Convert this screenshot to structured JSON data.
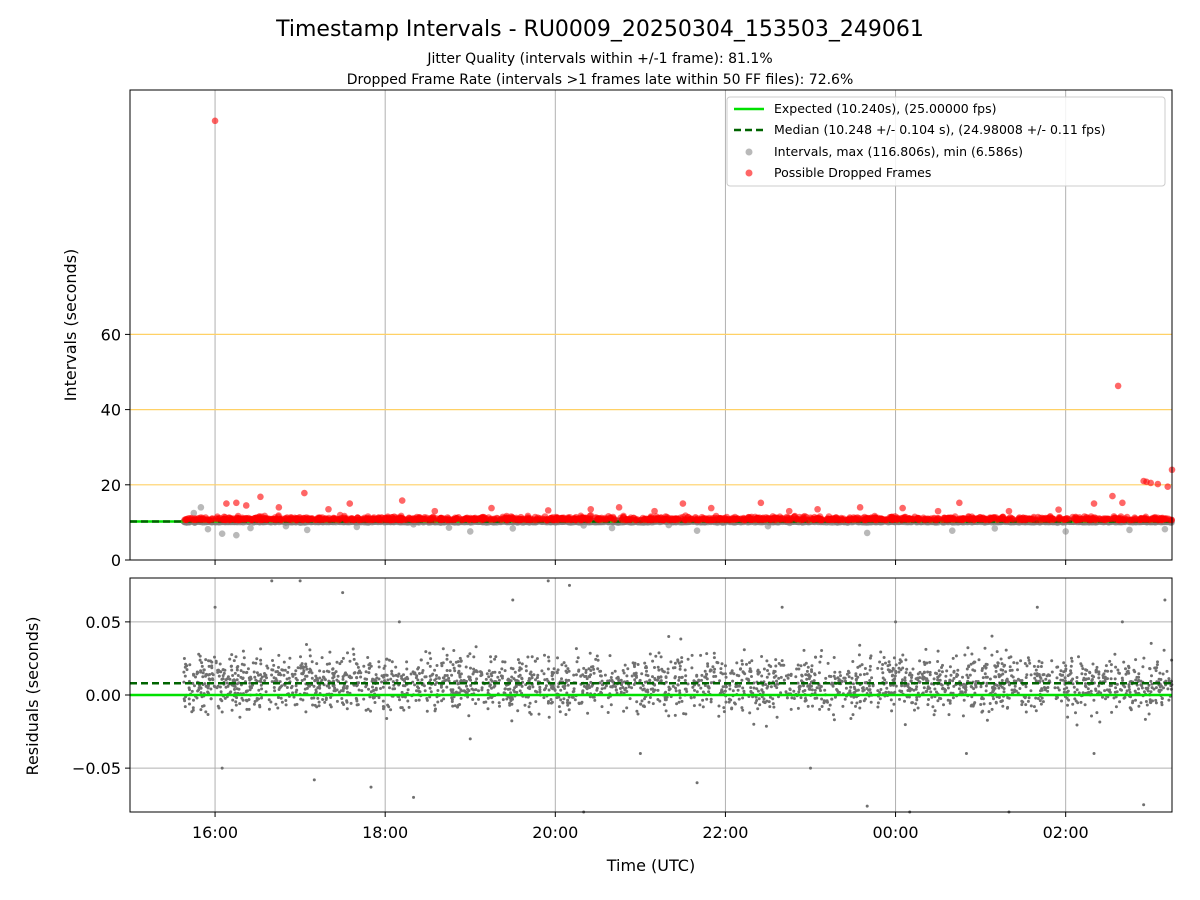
{
  "chart_data": [
    {
      "type": "scatter",
      "title": "Timestamp Intervals - RU0009_20250304_153503_249061",
      "subtitle_lines": [
        "Jitter Quality (intervals within +/-1 frame): 81.1%",
        "Dropped Frame Rate (intervals >1 frames late within 50 FF files): 72.6%"
      ],
      "xlabel": "",
      "ylabel": "Intervals (seconds)",
      "xlim": [
        "2025-03-04 15:00",
        "2025-03-05 03:15"
      ],
      "ylim": [
        0,
        125
      ],
      "yticks": [
        0,
        20,
        40,
        60
      ],
      "ytick_labels": [
        "0",
        "20",
        "40",
        "60"
      ],
      "xticks": [
        "2025-03-04 16:00",
        "2025-03-04 18:00",
        "2025-03-04 20:00",
        "2025-03-04 22:00",
        "2025-03-05 00:00",
        "2025-03-05 02:00"
      ],
      "reference_lines": [
        20,
        40,
        60
      ],
      "reference_line_color": "#ffd166",
      "grid": "vertical",
      "legend_position": "top-right",
      "legend": [
        "Expected (10.240s), (25.00000 fps)",
        "Median (10.248 +/- 0.104 s), (24.98008 +/- 0.11 fps)",
        "Intervals, max (116.806s), min (6.586s)",
        "Possible Dropped Frames"
      ],
      "expected_interval": 10.24,
      "median_interval": 10.248,
      "series": [
        {
          "name": "Intervals, max (116.806s), min (6.586s)",
          "color": "#808080",
          "points": [
            [
              "2025-03-04 15:40",
              10.0
            ],
            [
              "2025-03-04 15:45",
              12.5
            ],
            [
              "2025-03-04 15:50",
              14.0
            ],
            [
              "2025-03-04 15:55",
              8.2
            ],
            [
              "2025-03-04 16:05",
              7.0
            ],
            [
              "2025-03-04 16:15",
              6.6
            ],
            [
              "2025-03-04 16:25",
              8.5
            ],
            [
              "2025-03-04 16:50",
              9.0
            ],
            [
              "2025-03-04 17:05",
              8.0
            ],
            [
              "2025-03-04 17:40",
              8.8
            ],
            [
              "2025-03-04 18:20",
              9.5
            ],
            [
              "2025-03-04 18:45",
              8.6
            ],
            [
              "2025-03-04 19:00",
              7.6
            ],
            [
              "2025-03-04 19:30",
              8.4
            ],
            [
              "2025-03-04 20:20",
              9.2
            ],
            [
              "2025-03-04 20:40",
              8.5
            ],
            [
              "2025-03-04 21:20",
              9.3
            ],
            [
              "2025-03-04 21:40",
              7.8
            ],
            [
              "2025-03-04 22:30",
              9.0
            ],
            [
              "2025-03-04 23:40",
              7.2
            ],
            [
              "2025-03-05 00:40",
              7.8
            ],
            [
              "2025-03-05 01:10",
              8.4
            ],
            [
              "2025-03-05 02:00",
              7.6
            ],
            [
              "2025-03-05 02:45",
              8.0
            ],
            [
              "2025-03-05 03:10",
              8.2
            ]
          ]
        },
        {
          "name": "Possible Dropped Frames",
          "color": "#ff0000",
          "points": [
            [
              "2025-03-04 16:00",
              116.8
            ],
            [
              "2025-03-05 02:37",
              46.3
            ],
            [
              "2025-03-05 03:15",
              24.0
            ],
            [
              "2025-03-05 02:55",
              21.0
            ],
            [
              "2025-03-05 03:00",
              20.5
            ],
            [
              "2025-03-05 03:05",
              20.2
            ],
            [
              "2025-03-05 03:12",
              19.5
            ],
            [
              "2025-03-05 02:57",
              20.8
            ],
            [
              "2025-03-04 16:08",
              15.0
            ],
            [
              "2025-03-04 16:15",
              15.2
            ],
            [
              "2025-03-04 16:22",
              14.5
            ],
            [
              "2025-03-04 16:32",
              16.8
            ],
            [
              "2025-03-04 16:45",
              14.0
            ],
            [
              "2025-03-04 17:03",
              17.8
            ],
            [
              "2025-03-04 17:20",
              13.5
            ],
            [
              "2025-03-04 17:35",
              15.0
            ],
            [
              "2025-03-04 18:12",
              15.8
            ],
            [
              "2025-03-04 18:35",
              13.0
            ],
            [
              "2025-03-04 19:15",
              13.8
            ],
            [
              "2025-03-04 19:55",
              13.2
            ],
            [
              "2025-03-04 20:25",
              13.5
            ],
            [
              "2025-03-04 20:45",
              14.0
            ],
            [
              "2025-03-04 21:10",
              13.0
            ],
            [
              "2025-03-04 21:30",
              15.0
            ],
            [
              "2025-03-04 21:50",
              13.8
            ],
            [
              "2025-03-04 22:25",
              15.2
            ],
            [
              "2025-03-04 22:45",
              13.0
            ],
            [
              "2025-03-04 23:05",
              13.5
            ],
            [
              "2025-03-04 23:35",
              14.0
            ],
            [
              "2025-03-05 00:05",
              13.8
            ],
            [
              "2025-03-05 00:30",
              13.0
            ],
            [
              "2025-03-05 00:45",
              15.2
            ],
            [
              "2025-03-05 01:20",
              13.0
            ],
            [
              "2025-03-05 01:55",
              13.4
            ],
            [
              "2025-03-05 02:20",
              15.0
            ],
            [
              "2025-03-05 02:33",
              17.0
            ],
            [
              "2025-03-05 02:40",
              15.2
            ]
          ]
        }
      ]
    },
    {
      "type": "scatter",
      "title": "",
      "xlabel": "Time (UTC)",
      "ylabel": "Residuals (seconds)",
      "xlim": [
        "2025-03-04 15:00",
        "2025-03-05 03:15"
      ],
      "ylim": [
        -0.08,
        0.08
      ],
      "yticks": [
        0.05,
        0.0,
        -0.05
      ],
      "ytick_labels": [
        "0.05",
        "0.00",
        "−0.05"
      ],
      "xticks": [
        "2025-03-04 16:00",
        "2025-03-04 18:00",
        "2025-03-04 20:00",
        "2025-03-04 22:00",
        "2025-03-05 00:00",
        "2025-03-05 02:00"
      ],
      "xtick_labels": [
        "16:00",
        "18:00",
        "20:00",
        "22:00",
        "00:00",
        "02:00"
      ],
      "grid": "both",
      "expected_residual": 0.0,
      "median_residual": 0.008,
      "series": [
        {
          "name": "",
          "color": "#808080",
          "points": [
            [
              "2025-03-04 15:40",
              0.02
            ],
            [
              "2025-03-04 15:50",
              -0.01
            ],
            [
              "2025-03-04 16:00",
              0.06
            ],
            [
              "2025-03-04 16:05",
              -0.05
            ],
            [
              "2025-03-04 16:20",
              0.03
            ],
            [
              "2025-03-04 16:40",
              0.078
            ],
            [
              "2025-03-04 17:00",
              0.078
            ],
            [
              "2025-03-04 17:10",
              -0.058
            ],
            [
              "2025-03-04 17:30",
              0.07
            ],
            [
              "2025-03-04 17:50",
              -0.063
            ],
            [
              "2025-03-04 18:10",
              0.05
            ],
            [
              "2025-03-04 18:20",
              -0.07
            ],
            [
              "2025-03-04 18:40",
              0.02
            ],
            [
              "2025-03-04 19:00",
              -0.03
            ],
            [
              "2025-03-04 19:30",
              0.065
            ],
            [
              "2025-03-04 19:55",
              0.078
            ],
            [
              "2025-03-04 20:10",
              0.075
            ],
            [
              "2025-03-04 20:20",
              -0.08
            ],
            [
              "2025-03-04 20:40",
              0.01
            ],
            [
              "2025-03-04 21:00",
              -0.04
            ],
            [
              "2025-03-04 21:20",
              0.04
            ],
            [
              "2025-03-04 21:40",
              -0.06
            ],
            [
              "2025-03-04 22:00",
              0.02
            ],
            [
              "2025-03-04 22:20",
              -0.02
            ],
            [
              "2025-03-04 22:40",
              0.06
            ],
            [
              "2025-03-04 23:00",
              -0.05
            ],
            [
              "2025-03-04 23:20",
              0.01
            ],
            [
              "2025-03-04 23:40",
              -0.076
            ],
            [
              "2025-03-05 00:00",
              0.05
            ],
            [
              "2025-03-05 00:10",
              -0.08
            ],
            [
              "2025-03-05 00:30",
              0.03
            ],
            [
              "2025-03-05 00:50",
              -0.04
            ],
            [
              "2025-03-05 01:10",
              0.02
            ],
            [
              "2025-03-05 01:20",
              -0.08
            ],
            [
              "2025-03-05 01:40",
              0.06
            ],
            [
              "2025-03-05 02:00",
              0.02
            ],
            [
              "2025-03-05 02:20",
              -0.04
            ],
            [
              "2025-03-05 02:40",
              0.05
            ],
            [
              "2025-03-05 02:55",
              -0.075
            ],
            [
              "2025-03-05 03:10",
              0.065
            ]
          ]
        }
      ]
    }
  ]
}
